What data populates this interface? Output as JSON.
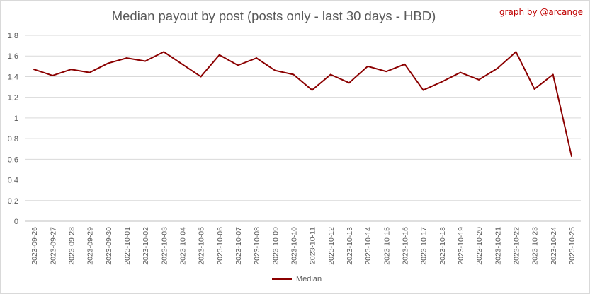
{
  "credit": "graph by @arcange",
  "chart_data": {
    "type": "line",
    "title": "Median payout by post (posts only - last 30 days - HBD)",
    "xlabel": "",
    "ylabel": "",
    "ylim": [
      0,
      1.8
    ],
    "yticks": [
      "0",
      "0,2",
      "0,4",
      "0,6",
      "0,8",
      "1",
      "1,2",
      "1,4",
      "1,6",
      "1,8"
    ],
    "grid": true,
    "legend_position": "bottom",
    "categories": [
      "2023-09-26",
      "2023-09-27",
      "2023-09-28",
      "2023-09-29",
      "2023-09-30",
      "2023-10-01",
      "2023-10-02",
      "2023-10-03",
      "2023-10-04",
      "2023-10-05",
      "2023-10-06",
      "2023-10-07",
      "2023-10-08",
      "2023-10-09",
      "2023-10-10",
      "2023-10-11",
      "2023-10-12",
      "2023-10-13",
      "2023-10-14",
      "2023-10-15",
      "2023-10-16",
      "2023-10-17",
      "2023-10-18",
      "2023-10-19",
      "2023-10-20",
      "2023-10-21",
      "2023-10-22",
      "2023-10-23",
      "2023-10-24",
      "2023-10-25"
    ],
    "series": [
      {
        "name": "Median",
        "color": "#8b0000",
        "values": [
          1.47,
          1.41,
          1.47,
          1.44,
          1.53,
          1.58,
          1.55,
          1.64,
          1.52,
          1.4,
          1.61,
          1.51,
          1.58,
          1.46,
          1.42,
          1.27,
          1.42,
          1.34,
          1.5,
          1.45,
          1.52,
          1.27,
          1.35,
          1.44,
          1.37,
          1.48,
          1.64,
          1.28,
          1.42,
          0.63
        ]
      }
    ]
  }
}
